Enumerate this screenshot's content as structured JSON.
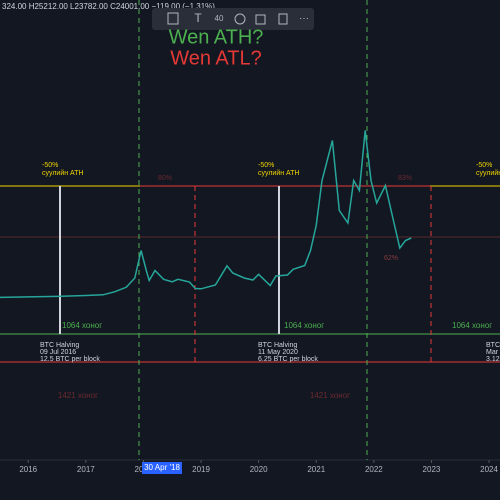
{
  "chart_data": {
    "type": "line",
    "header": "324.00 H25212.00 L23782.00 C24001.00 −119.00 (−1.31%)",
    "x": [
      2015.5,
      2016.0,
      2016.5,
      2017.0,
      2017.3,
      2017.5,
      2017.7,
      2017.85,
      2017.96,
      2018.05,
      2018.1,
      2018.2,
      2018.35,
      2018.5,
      2018.6,
      2018.8,
      2018.9,
      2019.0,
      2019.25,
      2019.45,
      2019.55,
      2019.75,
      2019.9,
      2020.0,
      2020.2,
      2020.3,
      2020.5,
      2020.6,
      2020.8,
      2020.9,
      2021.0,
      2021.1,
      2021.28,
      2021.4,
      2021.55,
      2021.65,
      2021.75,
      2021.85,
      2021.95,
      2022.05,
      2022.2,
      2022.35,
      2022.45,
      2022.55,
      2022.65
    ],
    "values": [
      250,
      430,
      650,
      1000,
      1300,
      2500,
      4300,
      8000,
      19000,
      11000,
      7000,
      11000,
      7500,
      6500,
      7500,
      6400,
      3800,
      3700,
      5200,
      12900,
      10000,
      8000,
      7200,
      9500,
      5000,
      8800,
      9200,
      11500,
      13000,
      19000,
      29000,
      47000,
      63000,
      35000,
      30000,
      47000,
      43000,
      67000,
      47000,
      38000,
      45000,
      30000,
      20000,
      23000,
      24000
    ],
    "color": "#26a69a",
    "xlim": [
      2015.51,
      2024.19
    ],
    "ylim": [
      -64800,
      119200
    ],
    "xticks": [
      2016,
      2017,
      2018,
      2019,
      2020,
      2021,
      2022,
      2023,
      2024
    ],
    "crosshair_label": "30 Apr '18",
    "annotations": [
      "Wen ATH?",
      "Wen ATL?",
      "-50%",
      "суулийн ATH",
      "-50%",
      "суулийн ATH",
      "-50%",
      "суулийн ATH",
      "1064 хоног",
      "1064 хоног",
      "1064 хоног",
      "BTC Halving",
      "09 Jul 2016",
      "12.5 BTC per block",
      "BTC Halving",
      "11 May 2020",
      "6.25 BTC per block",
      "BTC",
      "Mar",
      "3.12",
      "1421 хоног",
      "1421 хоног",
      "80%",
      "83%",
      "62%"
    ]
  }
}
